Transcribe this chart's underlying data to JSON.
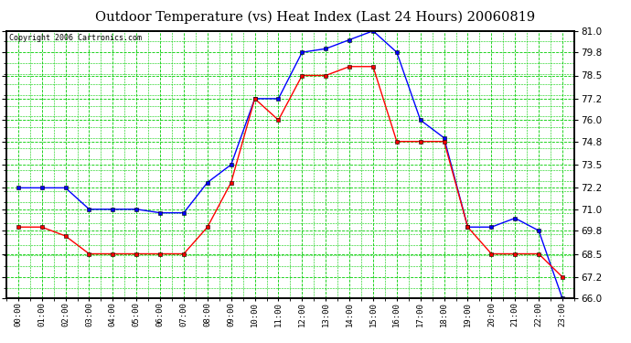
{
  "title": "Outdoor Temperature (vs) Heat Index (Last 24 Hours) 20060819",
  "copyright": "Copyright 2006 Cartronics.com",
  "hours": [
    "00:00",
    "01:00",
    "02:00",
    "03:00",
    "04:00",
    "05:00",
    "06:00",
    "07:00",
    "08:00",
    "09:00",
    "10:00",
    "11:00",
    "12:00",
    "13:00",
    "14:00",
    "15:00",
    "16:00",
    "17:00",
    "18:00",
    "19:00",
    "20:00",
    "21:00",
    "22:00",
    "23:00"
  ],
  "temp_blue": [
    72.2,
    72.2,
    72.2,
    71.0,
    71.0,
    71.0,
    70.8,
    70.8,
    72.5,
    73.5,
    77.2,
    77.2,
    79.8,
    80.0,
    80.5,
    81.0,
    79.8,
    76.0,
    75.0,
    70.0,
    70.0,
    70.5,
    69.8,
    66.0
  ],
  "heat_red": [
    70.0,
    70.0,
    69.5,
    68.5,
    68.5,
    68.5,
    68.5,
    68.5,
    70.0,
    72.5,
    77.2,
    76.0,
    78.5,
    78.5,
    79.0,
    79.0,
    74.8,
    74.8,
    74.8,
    70.0,
    68.5,
    68.5,
    68.5,
    67.2
  ],
  "ylim_min": 66.0,
  "ylim_max": 81.0,
  "yticks": [
    66.0,
    67.2,
    68.5,
    69.8,
    71.0,
    72.2,
    73.5,
    74.8,
    76.0,
    77.2,
    78.5,
    79.8,
    81.0
  ],
  "bg_color": "#ffffff",
  "grid_color": "#00cc00",
  "border_color": "#000000",
  "blue_color": "#0000ff",
  "red_color": "#ff0000",
  "title_color": "#000000",
  "title_fontsize": 10.5,
  "copyright_fontsize": 6.0,
  "tick_fontsize": 7.5,
  "xtick_fontsize": 6.5
}
